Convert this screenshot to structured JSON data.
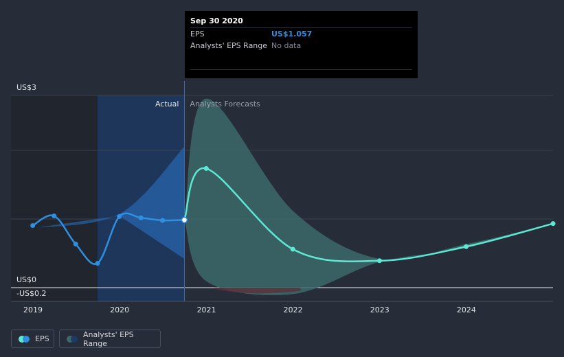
{
  "tooltip": {
    "date": "Sep 30 2020",
    "eps_label": "EPS",
    "eps_value": "US$1.057",
    "range_label": "Analysts' EPS Range",
    "range_value": "No data"
  },
  "labels": {
    "actual": "Actual",
    "forecasts": "Analysts Forecasts"
  },
  "legend": {
    "eps": "EPS",
    "range": "Analysts' EPS Range"
  },
  "colors": {
    "background": "#262c38",
    "eps_actual": "#2f8fe0",
    "eps_forecast": "#5ce8d2",
    "range_band": "#3c6a6a",
    "actual_shade": "#1c3a66"
  },
  "chart_data": {
    "type": "line",
    "y_axis_labels": [
      "US$3",
      "US$0",
      "-US$0.2"
    ],
    "ylim": [
      -0.2,
      3
    ],
    "x_ticks": [
      "2019",
      "2020",
      "2021",
      "2022",
      "2023",
      "2024"
    ],
    "xlim": [
      "2019-01-01",
      "2024-12-31"
    ],
    "actual_cutoff": "2020-09-30",
    "series": [
      {
        "name": "EPS",
        "segment": "actual",
        "points": [
          {
            "x": "2018-12-31",
            "y": 0.97
          },
          {
            "x": "2019-03-31",
            "y": 1.12
          },
          {
            "x": "2019-06-30",
            "y": 0.68
          },
          {
            "x": "2019-09-30",
            "y": 0.38
          },
          {
            "x": "2019-12-31",
            "y": 1.11
          },
          {
            "x": "2020-03-31",
            "y": 1.09
          },
          {
            "x": "2020-06-30",
            "y": 1.05
          },
          {
            "x": "2020-09-30",
            "y": 1.057
          }
        ]
      },
      {
        "name": "EPS",
        "segment": "forecast",
        "points": [
          {
            "x": "2020-09-30",
            "y": 1.057
          },
          {
            "x": "2020-12-31",
            "y": 1.86
          },
          {
            "x": "2021-12-31",
            "y": 0.6
          },
          {
            "x": "2022-12-31",
            "y": 0.42
          },
          {
            "x": "2023-12-31",
            "y": 0.64
          },
          {
            "x": "2024-12-31",
            "y": 1.0
          }
        ]
      }
    ],
    "range_band": {
      "name": "Analysts' EPS Range",
      "upper": [
        {
          "x": "2020-09-30",
          "y": 1.057
        },
        {
          "x": "2020-12-31",
          "y": 2.95
        },
        {
          "x": "2021-12-31",
          "y": 1.2
        },
        {
          "x": "2022-12-31",
          "y": 0.45
        },
        {
          "x": "2023-12-31",
          "y": 0.68
        },
        {
          "x": "2024-12-31",
          "y": 1.0
        }
      ],
      "lower": [
        {
          "x": "2020-09-30",
          "y": 1.057
        },
        {
          "x": "2020-12-31",
          "y": 0.1
        },
        {
          "x": "2021-12-31",
          "y": -0.1
        },
        {
          "x": "2022-12-31",
          "y": 0.4
        },
        {
          "x": "2023-12-31",
          "y": 0.62
        },
        {
          "x": "2024-12-31",
          "y": 1.0
        }
      ]
    },
    "actual_band": {
      "upper": [
        {
          "x": "2018-12-31",
          "y": 0.93
        },
        {
          "x": "2019-12-31",
          "y": 1.15
        },
        {
          "x": "2020-09-30",
          "y": 2.2
        }
      ],
      "lower": [
        {
          "x": "2018-12-31",
          "y": 0.93
        },
        {
          "x": "2019-12-31",
          "y": 1.12
        },
        {
          "x": "2020-09-30",
          "y": 0.45
        }
      ]
    }
  }
}
